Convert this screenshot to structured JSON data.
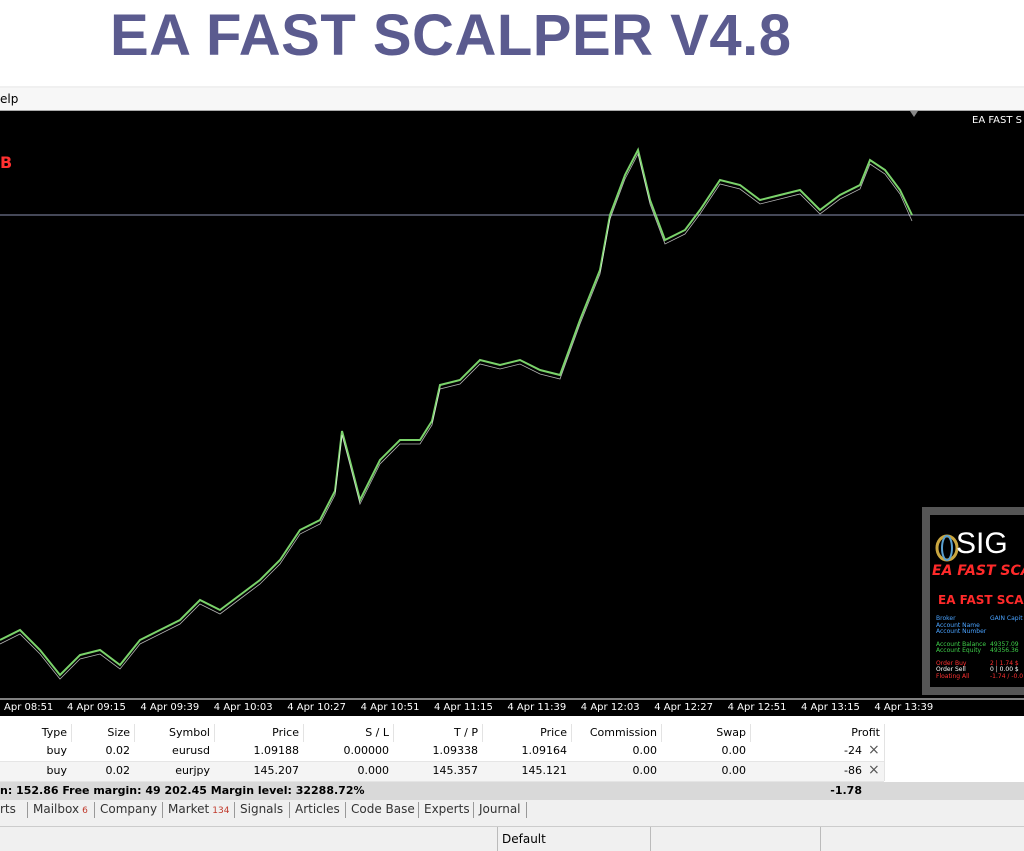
{
  "header": {
    "title": "EA FAST SCALPER V4.8"
  },
  "menu": {
    "item": "elp"
  },
  "chart": {
    "top_right_label": "EA FAST S",
    "marker": "B",
    "time_labels": [
      "Apr 08:51",
      "4 Apr 09:15",
      "4 Apr 09:39",
      "4 Apr 10:03",
      "4 Apr 10:27",
      "4 Apr 10:51",
      "4 Apr 11:15",
      "4 Apr 11:39",
      "4 Apr 12:03",
      "4 Apr 12:27",
      "4 Apr 12:51",
      "4 Apr 13:15",
      "4 Apr 13:39"
    ]
  },
  "panel": {
    "logo": "SIG",
    "brand": "EA FAST SCA",
    "title": "EA FAST SCAL",
    "rows": [
      {
        "label": "Broker",
        "value": "GAIN Capit",
        "color": "#4aa3ff"
      },
      {
        "label": "Account Name",
        "value": "",
        "color": "#4aa3ff"
      },
      {
        "label": "Account Number",
        "value": "",
        "color": "#4aa3ff"
      },
      {
        "label": "Account Balance",
        "value": "49357.09",
        "color": "#3fd04a"
      },
      {
        "label": "Account Equity",
        "value": "49356.36",
        "color": "#3fd04a"
      },
      {
        "label": "Order Buy",
        "value": "2 | 1.74 $",
        "color": "#ff3030"
      },
      {
        "label": "Order Sell",
        "value": "0 | 0.00 $",
        "color": "#ffffff"
      },
      {
        "label": "Floating All",
        "value": "-1.74 / -0.0",
        "color": "#ff3030"
      }
    ]
  },
  "table": {
    "columns": [
      "Type",
      "Size",
      "Symbol",
      "Price",
      "S / L",
      "T / P",
      "Price",
      "Commission",
      "Swap",
      "Profit"
    ],
    "rows": [
      [
        "buy",
        "0.02",
        "eurusd",
        "1.09188",
        "0.00000",
        "1.09338",
        "1.09164",
        "0.00",
        "0.00",
        "-24"
      ],
      [
        "buy",
        "0.02",
        "eurjpy",
        "145.207",
        "0.000",
        "145.357",
        "145.121",
        "0.00",
        "0.00",
        "-86"
      ]
    ],
    "summary": "n: 152.86  Free margin: 49 202.45  Margin level: 32288.72%",
    "summary_profit": "-1.78"
  },
  "tabs": [
    {
      "label": "rts"
    },
    {
      "label": "Mailbox",
      "badge": "6"
    },
    {
      "label": "Company"
    },
    {
      "label": "Market",
      "badge": "134"
    },
    {
      "label": "Signals"
    },
    {
      "label": "Articles"
    },
    {
      "label": "Code Base"
    },
    {
      "label": "Experts"
    },
    {
      "label": "Journal"
    }
  ],
  "status": {
    "profile": "Default"
  }
}
